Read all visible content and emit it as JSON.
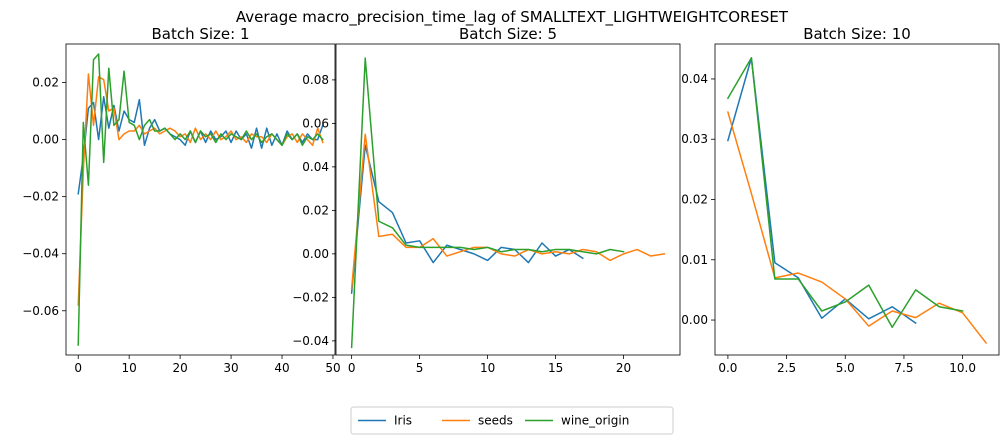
{
  "figure": {
    "title": "Average macro_precision_time_lag of SMALLTEXT_LIGHTWEIGHTCORESET"
  },
  "legend": {
    "placement": "bottom-center",
    "entries": [
      "Iris",
      "seeds",
      "wine_origin"
    ]
  },
  "colors": {
    "Iris": "#1f77b4",
    "seeds": "#ff7f0e",
    "wine_origin": "#2ca02c"
  },
  "chart_data": [
    {
      "type": "line",
      "title": "Batch Size: 1",
      "xlim": [
        -2.4,
        50.4
      ],
      "ylim": [
        -0.0755,
        0.0335
      ],
      "xticks": [
        0,
        10,
        20,
        30,
        40,
        50
      ],
      "xtick_labels": [
        "0",
        "10",
        "20",
        "30",
        "40",
        "50"
      ],
      "yticks": [
        -0.06,
        -0.04,
        -0.02,
        0.0,
        0.02
      ],
      "ytick_labels": [
        "−0.06",
        "−0.04",
        "−0.02",
        "0.00",
        "0.02"
      ],
      "series": [
        {
          "name": "Iris",
          "x": [
            0,
            1,
            2,
            3,
            4,
            5,
            6,
            7,
            8,
            9,
            10,
            11,
            12,
            13,
            14,
            15,
            16,
            17,
            18,
            19,
            20,
            21,
            22,
            23,
            24,
            25,
            26,
            27,
            28,
            29,
            30,
            31,
            32,
            33,
            34,
            35,
            36,
            37,
            38,
            39,
            40,
            41,
            42,
            43,
            44,
            45,
            46,
            47,
            48
          ],
          "y": [
            -0.019,
            -0.006,
            0.011,
            0.013,
            0.0,
            0.015,
            0.004,
            0.012,
            0.003,
            0.01,
            0.007,
            0.006,
            0.014,
            -0.002,
            0.004,
            0.007,
            0.003,
            0.004,
            0.002,
            0.001,
            0.0,
            -0.002,
            0.003,
            -0.001,
            0.003,
            -0.001,
            0.003,
            0.0,
            0.001,
            0.003,
            -0.001,
            0.003,
            0.0,
            0.002,
            -0.003,
            0.004,
            -0.003,
            0.004,
            -0.002,
            0.002,
            -0.002,
            0.003,
            0.0,
            0.002,
            -0.001,
            0.002,
            0.0,
            0.0,
            0.005
          ]
        },
        {
          "name": "seeds",
          "x": [
            0,
            1,
            2,
            3,
            4,
            5,
            6,
            7,
            8,
            9,
            10,
            11,
            12,
            13,
            14,
            15,
            16,
            17,
            18,
            19,
            20,
            21,
            22,
            23,
            24,
            25,
            26,
            27,
            28,
            29,
            30,
            31,
            32,
            33,
            34,
            35,
            36,
            37,
            38,
            39,
            40,
            41,
            42,
            43,
            44,
            45,
            46,
            47,
            48
          ],
          "y": [
            -0.058,
            -0.011,
            0.023,
            0.005,
            0.022,
            0.021,
            0.01,
            0.011,
            0.0,
            0.002,
            0.003,
            0.003,
            0.005,
            0.002,
            0.003,
            0.004,
            0.002,
            0.003,
            0.004,
            0.003,
            0.001,
            0.002,
            -0.001,
            0.004,
            0.0,
            0.002,
            0.0,
            0.003,
            0.0,
            0.001,
            0.003,
            0.0,
            0.001,
            -0.001,
            0.002,
            0.001,
            0.001,
            -0.001,
            0.002,
            0.0,
            -0.002,
            0.001,
            0.002,
            -0.001,
            0.002,
            0.0,
            -0.002,
            0.004,
            -0.001
          ]
        },
        {
          "name": "wine_origin",
          "x": [
            0,
            1,
            2,
            3,
            4,
            5,
            6,
            7,
            8,
            9,
            10,
            11,
            12,
            13,
            14,
            15,
            16,
            17,
            18,
            19,
            20,
            21,
            22,
            23,
            24,
            25,
            26,
            27,
            28,
            29,
            30,
            31,
            32,
            33,
            34,
            35,
            36,
            37,
            38,
            39,
            40,
            41,
            42,
            43,
            44,
            45,
            46,
            47,
            48
          ],
          "y": [
            -0.072,
            0.006,
            -0.016,
            0.028,
            0.03,
            -0.008,
            0.025,
            0.005,
            0.007,
            0.024,
            0.006,
            0.005,
            0.0,
            0.005,
            0.007,
            0.003,
            0.003,
            0.004,
            0.002,
            0.0,
            0.002,
            0.0,
            0.003,
            -0.001,
            0.003,
            0.001,
            0.002,
            -0.001,
            0.002,
            0.0,
            0.002,
            0.001,
            0.0,
            0.003,
            0.0,
            0.002,
            -0.001,
            0.001,
            0.002,
            0.0,
            -0.002,
            0.002,
            0.0,
            0.002,
            -0.002,
            0.001,
            0.0,
            0.002,
            0.0
          ]
        }
      ]
    },
    {
      "type": "line",
      "title": "Batch Size: 5",
      "xlim": [
        -1.15,
        24.15
      ],
      "ylim": [
        -0.0465,
        0.0965
      ],
      "xticks": [
        0,
        5,
        10,
        15,
        20
      ],
      "xtick_labels": [
        "0",
        "5",
        "10",
        "15",
        "20"
      ],
      "yticks": [
        -0.04,
        -0.02,
        0.0,
        0.02,
        0.04,
        0.06,
        0.08
      ],
      "ytick_labels": [
        "−0.04",
        "−0.02",
        "0.00",
        "0.02",
        "0.04",
        "0.06",
        "0.08"
      ],
      "series": [
        {
          "name": "Iris",
          "x": [
            0,
            1,
            2,
            3,
            4,
            5,
            6,
            7,
            8,
            9,
            10,
            11,
            12,
            13,
            14,
            15,
            16,
            17
          ],
          "y": [
            -0.018,
            0.05,
            0.024,
            0.019,
            0.005,
            0.006,
            -0.004,
            0.004,
            0.002,
            0.0,
            -0.003,
            0.003,
            0.002,
            -0.004,
            0.005,
            -0.001,
            0.002,
            -0.002
          ]
        },
        {
          "name": "seeds",
          "x": [
            0,
            1,
            2,
            3,
            4,
            5,
            6,
            7,
            8,
            9,
            10,
            11,
            12,
            13,
            14,
            15,
            16,
            17,
            18,
            19,
            20,
            21,
            22,
            23
          ],
          "y": [
            -0.016,
            0.055,
            0.008,
            0.009,
            0.003,
            0.003,
            0.007,
            -0.001,
            0.001,
            0.003,
            0.003,
            0.0,
            -0.001,
            0.002,
            0.0,
            0.001,
            0.0,
            0.002,
            0.001,
            -0.003,
            0.0,
            0.002,
            -0.001,
            0.0
          ]
        },
        {
          "name": "wine_origin",
          "x": [
            0,
            1,
            2,
            3,
            4,
            5,
            6,
            7,
            8,
            9,
            10,
            11,
            12,
            13,
            14,
            15,
            16,
            17,
            18,
            19,
            20
          ],
          "y": [
            -0.043,
            0.09,
            0.015,
            0.012,
            0.004,
            0.003,
            0.003,
            0.003,
            0.003,
            0.002,
            0.003,
            0.001,
            0.002,
            0.002,
            0.001,
            0.002,
            0.002,
            0.001,
            0.0,
            0.002,
            0.001
          ]
        }
      ]
    },
    {
      "type": "line",
      "title": "Batch Size: 10",
      "xlim": [
        -0.55,
        11.55
      ],
      "ylim": [
        -0.0058,
        0.0458
      ],
      "xticks": [
        0,
        2.5,
        5.0,
        7.5,
        10.0
      ],
      "xtick_labels": [
        "0.0",
        "2.5",
        "5.0",
        "7.5",
        "10.0"
      ],
      "yticks": [
        0.0,
        0.01,
        0.02,
        0.03,
        0.04
      ],
      "ytick_labels": [
        "0.00",
        "0.01",
        "0.02",
        "0.03",
        "0.04"
      ],
      "series": [
        {
          "name": "Iris",
          "x": [
            0,
            1,
            2,
            3,
            4,
            5,
            6,
            7,
            8
          ],
          "y": [
            0.0298,
            0.0435,
            0.0095,
            0.007,
            0.0003,
            0.0035,
            0.0002,
            0.0022,
            -0.0005
          ]
        },
        {
          "name": "seeds",
          "x": [
            0,
            1,
            2,
            3,
            4,
            5,
            6,
            7,
            8,
            9,
            10,
            11
          ],
          "y": [
            0.0345,
            0.021,
            0.007,
            0.0078,
            0.0063,
            0.0035,
            -0.001,
            0.0015,
            0.0004,
            0.0028,
            0.0012,
            -0.0038
          ]
        },
        {
          "name": "wine_origin",
          "x": [
            0,
            1,
            2,
            3,
            4,
            5,
            6,
            7,
            8,
            9,
            10
          ],
          "y": [
            0.0368,
            0.0435,
            0.0068,
            0.0068,
            0.0015,
            0.003,
            0.0058,
            -0.0012,
            0.005,
            0.0022,
            0.0015
          ]
        }
      ]
    }
  ]
}
